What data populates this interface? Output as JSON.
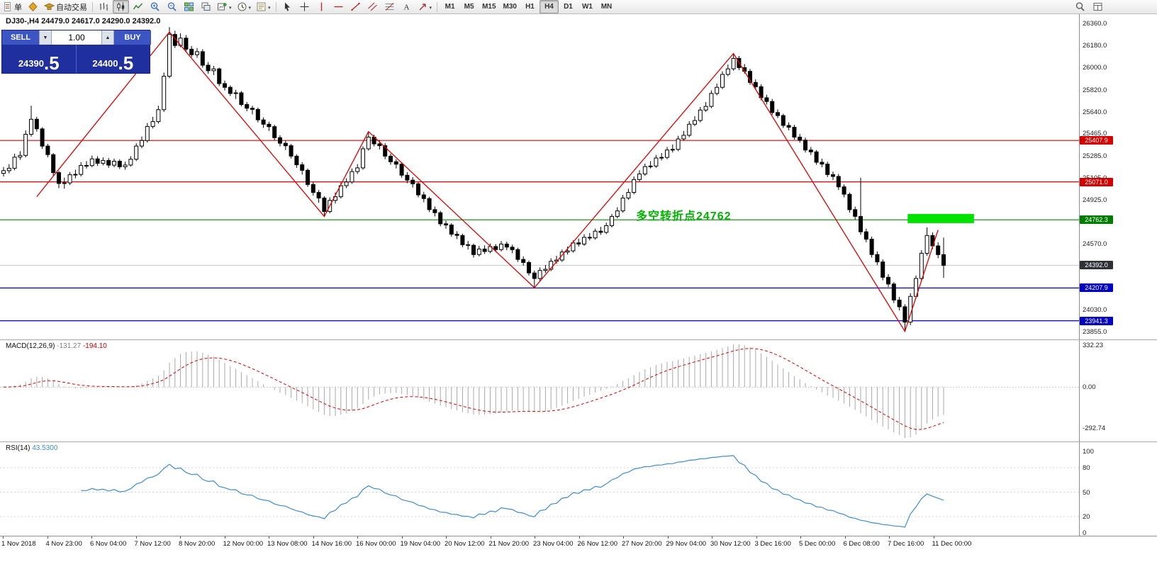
{
  "toolbar": {
    "new_order_label": "单",
    "autotrading_label": "自动交易",
    "timeframes": [
      "M1",
      "M5",
      "M15",
      "M30",
      "H1",
      "H4",
      "D1",
      "W1",
      "MN"
    ],
    "active_timeframe": "H4"
  },
  "trade_panel": {
    "sell_label": "SELL",
    "buy_label": "BUY",
    "volume": "1.00",
    "sell_price_small": "24390",
    "sell_price_big": ".5",
    "buy_price_small": "24400",
    "buy_price_big": ".5"
  },
  "chart": {
    "title": "DJ30-,H4 24479.0 24617.0 24290.0 24392.0"
  },
  "chart_data": {
    "type": "candlestick",
    "symbol": "DJ30-",
    "timeframe": "H4",
    "last_ohlc": {
      "open": 24479.0,
      "high": 24617.0,
      "low": 24290.0,
      "close": 24392.0
    },
    "price_axis": {
      "ticks": [
        26360.0,
        26180.0,
        26000.0,
        25820.0,
        25640.0,
        25465.0,
        25285.0,
        25105.0,
        24925.0,
        24750.0,
        24570.0,
        24390.0,
        24210.0,
        24030.0,
        23855.0
      ]
    },
    "hlines": [
      {
        "price": 25407.9,
        "color": "#e00000",
        "badge_bg": "#d40000"
      },
      {
        "price": 25071.0,
        "color": "#e00000",
        "badge_bg": "#d40000"
      },
      {
        "price": 24762.3,
        "color": "#008a00",
        "badge_bg": "#007d00"
      },
      {
        "price": 24392.0,
        "color": "#c4c4c4",
        "badge_bg": "#2f3038",
        "current": true
      },
      {
        "price": 24207.9,
        "color": "#0000d0",
        "badge_bg": "#0000c0"
      },
      {
        "price": 23941.3,
        "color": "#0000d0",
        "badge_bg": "#0000c0"
      }
    ],
    "zigzag": [
      [
        6,
        24950
      ],
      [
        30,
        26290
      ],
      [
        58,
        24790
      ],
      [
        66,
        25480
      ],
      [
        96,
        24210
      ],
      [
        132,
        26115
      ],
      [
        163,
        23855
      ],
      [
        169,
        24680
      ]
    ],
    "highlight_bar": {
      "x_start_index": 163.5,
      "x_end_index": 175.5,
      "price_top": 24810,
      "price_bottom": 24735,
      "color": "#00e300"
    },
    "annotation": {
      "text": "多空转折点24762",
      "color": "#00b400"
    },
    "indicators": {
      "macd": {
        "name": "MACD(12,26,9)",
        "value_main": "-131.27",
        "value_signal": "-194.10",
        "scale": [
          "332.23",
          "0.00",
          "-292.74"
        ]
      },
      "rsi": {
        "name": "RSI(14)",
        "value": "43.5300",
        "scale": [
          "100",
          "80",
          "50",
          "20",
          "0"
        ]
      }
    },
    "time_labels": [
      "1 Nov 2018",
      "4 Nov 23:00",
      "6 Nov 04:00",
      "7 Nov 12:00",
      "8 Nov 20:00",
      "12 Nov 00:00",
      "13 Nov 08:00",
      "14 Nov 16:00",
      "16 Nov 00:00",
      "19 Nov 04:00",
      "20 Nov 12:00",
      "21 Nov 20:00",
      "23 Nov 04:00",
      "26 Nov 12:00",
      "27 Nov 20:00",
      "29 Nov 04:00",
      "30 Nov 12:00",
      "3 Dec 16:00",
      "5 Dec 00:00",
      "6 Dec 08:00",
      "7 Dec 16:00",
      "11 Dec 00:00"
    ],
    "candles": [
      [
        25140,
        25192,
        25115,
        25162
      ],
      [
        25162,
        25215,
        25140,
        25182
      ],
      [
        25182,
        25300,
        25165,
        25272
      ],
      [
        25272,
        25320,
        25250,
        25286
      ],
      [
        25286,
        25490,
        25270,
        25458
      ],
      [
        25458,
        25690,
        25440,
        25580
      ],
      [
        25580,
        25600,
        25480,
        25502
      ],
      [
        25502,
        25515,
        25340,
        25362
      ],
      [
        25362,
        25380,
        25270,
        25292
      ],
      [
        25292,
        25305,
        25120,
        25146
      ],
      [
        25146,
        25160,
        25020,
        25058
      ],
      [
        25058,
        25105,
        25015,
        25063
      ],
      [
        25063,
        25150,
        25045,
        25129
      ],
      [
        25129,
        25170,
        25100,
        25132
      ],
      [
        25132,
        25230,
        25115,
        25205
      ],
      [
        25205,
        25240,
        25180,
        25203
      ],
      [
        25203,
        25285,
        25190,
        25258
      ],
      [
        25258,
        25280,
        25200,
        25222
      ],
      [
        25222,
        25270,
        25205,
        25245
      ],
      [
        25245,
        25265,
        25185,
        25207
      ],
      [
        25207,
        25260,
        25190,
        25239
      ],
      [
        25239,
        25255,
        25175,
        25194
      ],
      [
        25194,
        25235,
        25170,
        25208
      ],
      [
        25208,
        25280,
        25195,
        25255
      ],
      [
        25255,
        25385,
        25240,
        25362
      ],
      [
        25362,
        25440,
        25345,
        25407
      ],
      [
        25407,
        25550,
        25390,
        25522
      ],
      [
        25522,
        25600,
        25505,
        25561
      ],
      [
        25561,
        25690,
        25545,
        25658
      ],
      [
        25658,
        25960,
        25640,
        25930
      ],
      [
        25930,
        26330,
        25915,
        26270
      ],
      [
        26270,
        26300,
        26160,
        26180
      ],
      [
        26180,
        26280,
        26165,
        26240
      ],
      [
        26240,
        26265,
        26130,
        26150
      ],
      [
        26150,
        26175,
        26085,
        26105
      ],
      [
        26105,
        26160,
        26080,
        26130
      ],
      [
        26130,
        26150,
        26000,
        26020
      ],
      [
        26020,
        26045,
        25950,
        25975
      ],
      [
        25975,
        26015,
        25940,
        25990
      ],
      [
        25990,
        26000,
        25850,
        25870
      ],
      [
        25870,
        25895,
        25815,
        25840
      ],
      [
        25840,
        25855,
        25770,
        25790
      ],
      [
        25790,
        25820,
        25745,
        25795
      ],
      [
        25795,
        25810,
        25685,
        25700
      ],
      [
        25700,
        25720,
        25645,
        25670
      ],
      [
        25670,
        25690,
        25620,
        25660
      ],
      [
        25660,
        25675,
        25555,
        25575
      ],
      [
        25575,
        25595,
        25510,
        25540
      ],
      [
        25540,
        25560,
        25485,
        25520
      ],
      [
        25520,
        25535,
        25410,
        25430
      ],
      [
        25430,
        25450,
        25360,
        25385
      ],
      [
        25385,
        25405,
        25330,
        25365
      ],
      [
        25365,
        25380,
        25260,
        25280
      ],
      [
        25280,
        25295,
        25185,
        25210
      ],
      [
        25210,
        25230,
        25130,
        25165
      ],
      [
        25165,
        25180,
        25030,
        25050
      ],
      [
        25050,
        25070,
        24960,
        24985
      ],
      [
        24985,
        25005,
        24900,
        24940
      ],
      [
        24940,
        24955,
        24790,
        24830
      ],
      [
        24830,
        24945,
        24815,
        24920
      ],
      [
        24920,
        24985,
        24895,
        24950
      ],
      [
        24950,
        25065,
        24935,
        25040
      ],
      [
        25040,
        25100,
        25020,
        25070
      ],
      [
        25070,
        25180,
        25055,
        25155
      ],
      [
        25155,
        25215,
        25135,
        25185
      ],
      [
        25185,
        25360,
        25170,
        25340
      ],
      [
        25340,
        25480,
        25325,
        25435
      ],
      [
        25435,
        25455,
        25360,
        25380
      ],
      [
        25380,
        25410,
        25335,
        25365
      ],
      [
        25365,
        25385,
        25255,
        25280
      ],
      [
        25280,
        25300,
        25210,
        25235
      ],
      [
        25235,
        25255,
        25180,
        25215
      ],
      [
        25215,
        25230,
        25105,
        25125
      ],
      [
        25125,
        25150,
        25060,
        25085
      ],
      [
        25085,
        25110,
        25025,
        25055
      ],
      [
        25055,
        25070,
        24945,
        24965
      ],
      [
        24965,
        24990,
        24905,
        24935
      ],
      [
        24935,
        24950,
        24825,
        24845
      ],
      [
        24845,
        24870,
        24790,
        24820
      ],
      [
        24820,
        24835,
        24710,
        24730
      ],
      [
        24730,
        24755,
        24690,
        24720
      ],
      [
        24720,
        24735,
        24625,
        24645
      ],
      [
        24645,
        24670,
        24605,
        24635
      ],
      [
        24635,
        24650,
        24540,
        24560
      ],
      [
        24560,
        24590,
        24520,
        24555
      ],
      [
        24555,
        24570,
        24455,
        24480
      ],
      [
        24480,
        24550,
        24465,
        24525
      ],
      [
        24525,
        24555,
        24485,
        24505
      ],
      [
        24505,
        24570,
        24490,
        24545
      ],
      [
        24545,
        24565,
        24500,
        24520
      ],
      [
        24520,
        24590,
        24505,
        24565
      ],
      [
        24565,
        24585,
        24515,
        24540
      ],
      [
        24540,
        24560,
        24490,
        24520
      ],
      [
        24520,
        24535,
        24420,
        24440
      ],
      [
        24440,
        24465,
        24390,
        24415
      ],
      [
        24415,
        24430,
        24310,
        24330
      ],
      [
        24330,
        24350,
        24210,
        24285
      ],
      [
        24285,
        24375,
        24265,
        24350
      ],
      [
        24350,
        24395,
        24330,
        24360
      ],
      [
        24360,
        24450,
        24345,
        24425
      ],
      [
        24425,
        24470,
        24405,
        24435
      ],
      [
        24435,
        24520,
        24420,
        24500
      ],
      [
        24500,
        24545,
        24480,
        24510
      ],
      [
        24510,
        24595,
        24495,
        24575
      ],
      [
        24575,
        24610,
        24545,
        24565
      ],
      [
        24565,
        24645,
        24550,
        24620
      ],
      [
        24620,
        24655,
        24595,
        24615
      ],
      [
        24615,
        24690,
        24600,
        24670
      ],
      [
        24670,
        24705,
        24640,
        24660
      ],
      [
        24660,
        24740,
        24645,
        24715
      ],
      [
        24715,
        24810,
        24700,
        24790
      ],
      [
        24790,
        24865,
        24775,
        24835
      ],
      [
        24835,
        24965,
        24820,
        24940
      ],
      [
        24940,
        25015,
        24925,
        24985
      ],
      [
        24985,
        25115,
        24970,
        25090
      ],
      [
        25090,
        25165,
        25075,
        25135
      ],
      [
        25135,
        25220,
        25120,
        25195
      ],
      [
        25195,
        25240,
        25180,
        25200
      ],
      [
        25200,
        25290,
        25185,
        25265
      ],
      [
        25265,
        25305,
        25245,
        25270
      ],
      [
        25270,
        25355,
        25255,
        25330
      ],
      [
        25330,
        25375,
        25310,
        25335
      ],
      [
        25335,
        25445,
        25320,
        25420
      ],
      [
        25420,
        25485,
        25405,
        25450
      ],
      [
        25450,
        25565,
        25435,
        25540
      ],
      [
        25540,
        25605,
        25525,
        25570
      ],
      [
        25570,
        25680,
        25555,
        25655
      ],
      [
        25655,
        25720,
        25640,
        25685
      ],
      [
        25685,
        25815,
        25670,
        25790
      ],
      [
        25790,
        25870,
        25775,
        25840
      ],
      [
        25840,
        25970,
        25825,
        25945
      ],
      [
        25945,
        26025,
        25930,
        25990
      ],
      [
        25990,
        26115,
        25975,
        26075
      ],
      [
        26075,
        26095,
        25980,
        26000
      ],
      [
        26000,
        26030,
        25950,
        25970
      ],
      [
        25970,
        25990,
        25860,
        25880
      ],
      [
        25880,
        25905,
        25820,
        25845
      ],
      [
        25845,
        25865,
        25735,
        25755
      ],
      [
        25755,
        25780,
        25700,
        25725
      ],
      [
        25725,
        25745,
        25615,
        25635
      ],
      [
        25635,
        25660,
        25590,
        25610
      ],
      [
        25610,
        25625,
        25510,
        25530
      ],
      [
        25530,
        25555,
        25490,
        25515
      ],
      [
        25515,
        25535,
        25415,
        25435
      ],
      [
        25435,
        25460,
        25390,
        25410
      ],
      [
        25410,
        25430,
        25310,
        25330
      ],
      [
        25330,
        25355,
        25290,
        25315
      ],
      [
        25315,
        25330,
        25210,
        25230
      ],
      [
        25230,
        25260,
        25190,
        25215
      ],
      [
        25215,
        25235,
        25110,
        25130
      ],
      [
        25130,
        25155,
        25085,
        25115
      ],
      [
        25115,
        25135,
        25005,
        25030
      ],
      [
        25030,
        25050,
        24945,
        24970
      ],
      [
        24970,
        24985,
        24820,
        24845
      ],
      [
        24845,
        24870,
        24765,
        24790
      ],
      [
        24790,
        25105,
        24640,
        24665
      ],
      [
        24665,
        24690,
        24580,
        24605
      ],
      [
        24605,
        24625,
        24455,
        24480
      ],
      [
        24480,
        24505,
        24395,
        24420
      ],
      [
        24420,
        24440,
        24270,
        24295
      ],
      [
        24295,
        24320,
        24215,
        24240
      ],
      [
        24240,
        24255,
        24085,
        24110
      ],
      [
        24110,
        24135,
        24025,
        24055
      ],
      [
        24055,
        24075,
        23855,
        23930
      ],
      [
        23930,
        24165,
        23905,
        24140
      ],
      [
        24140,
        24310,
        24120,
        24285
      ],
      [
        24285,
        24515,
        24265,
        24490
      ],
      [
        24490,
        24700,
        24470,
        24635
      ],
      [
        24635,
        24660,
        24525,
        24550
      ],
      [
        24550,
        24580,
        24450,
        24479
      ],
      [
        24479,
        24617,
        24290,
        24392
      ]
    ]
  }
}
